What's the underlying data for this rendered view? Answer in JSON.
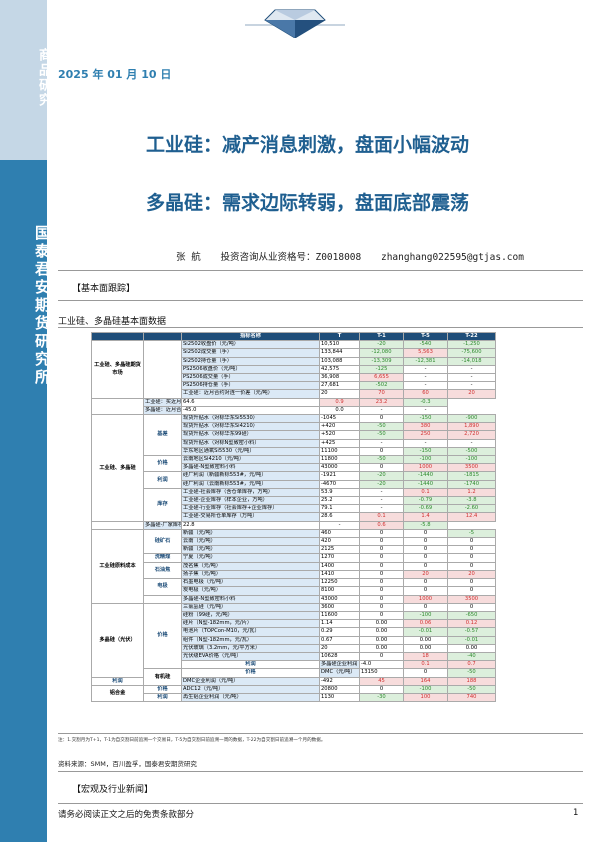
{
  "sidebar": {
    "top_text": "商品研究",
    "bottom_text": "国泰君安期货研究所"
  },
  "header": {
    "date": "2025 年 01 月 10 日"
  },
  "titles": {
    "main": "工业硅：减产消息刺激，盘面小幅波动",
    "sub": "多晶硅：需求边际转弱，盘面底部震荡"
  },
  "author": {
    "name": "张  航",
    "cert": "投资咨询从业资格号：Z0018008",
    "email": "zhanghang022595@gtjas.com"
  },
  "section1": "【基本面跟踪】",
  "table_title": "工业硅、多晶硅基本面数据",
  "table": {
    "headers": [
      "",
      "",
      "指标名称",
      "T",
      "T-1",
      "T-5",
      "T-22"
    ],
    "rows": [
      {
        "cat": "工业硅、多晶硅期货市场",
        "cat_rows": 7,
        "sub": "",
        "sub_rows": 7,
        "name": "Si2502收盘价（元/吨）",
        "v": "10,510",
        "d1": "-20",
        "c1": "g",
        "d5": "-540",
        "c5": "g",
        "d22": "-1,250",
        "c22": "g"
      },
      {
        "name": "Si2502成交量（手）",
        "v": "133,844",
        "d1": "-12,080",
        "c1": "g",
        "d5": "5,563",
        "c5": "r",
        "d22": "-75,600",
        "c22": "g"
      },
      {
        "name": "Si2502持仓量（手）",
        "v": "103,088",
        "d1": "-13,309",
        "c1": "g",
        "d5": "-12,381",
        "c5": "g",
        "d22": "-14,018",
        "c22": "g"
      },
      {
        "name": "PS2506收盘价（元/吨）",
        "v": "42,575",
        "d1": "-125",
        "c1": "g",
        "d5": "-",
        "c5": "",
        "d22": "-",
        "c22": ""
      },
      {
        "name": "PS2506成交量（手）",
        "v": "36,908",
        "d1": "6,655",
        "c1": "r",
        "d5": "-",
        "c5": "",
        "d22": "-",
        "c22": ""
      },
      {
        "name": "PS2506持仓量（手）",
        "v": "27,681",
        "d1": "-502",
        "c1": "g",
        "d5": "-",
        "c5": "",
        "d22": "-",
        "c22": ""
      },
      {
        "name": "工业硅：近月合约对连一价差（元/吨）",
        "v": "20",
        "d1": "70",
        "c1": "r",
        "d5": "60",
        "c5": "r",
        "d22": "20",
        "c22": "r"
      },
      {
        "cat": "",
        "cat_rows": 0,
        "sub": "",
        "sub_rows": 2,
        "name": "工业硅：买近月期货合约一跨期成本（元/吨）",
        "v": "64.6",
        "d1": "0.9",
        "c1": "r",
        "d5": "23.2",
        "c5": "r",
        "d22": "-0.3",
        "c22": "g"
      },
      {
        "name": "多晶硅：近月合约对连一价差（元/吨）",
        "v": "-45.0",
        "d1": "0.0",
        "c1": "",
        "d5": "-",
        "c5": "",
        "d22": "-",
        "c22": ""
      },
      {
        "cat": "工业硅、多晶硅",
        "cat_rows": 13,
        "sub": "基差",
        "sub_rows": 5,
        "name": "现货升贴水（对标华东Si5530）",
        "v": "-1045",
        "d1": "0",
        "c1": "",
        "d5": "-150",
        "c5": "g",
        "d22": "-900",
        "c22": "g"
      },
      {
        "name": "现货升贴水（对标华东Si4210）",
        "v": "+420",
        "d1": "-50",
        "c1": "g",
        "d5": "380",
        "c5": "r",
        "d22": "1,890",
        "c22": "r"
      },
      {
        "name": "现货升贴水（对标华东99硅）",
        "v": "+520",
        "d1": "-50",
        "c1": "g",
        "d5": "250",
        "c5": "r",
        "d22": "2,720",
        "c22": "r"
      },
      {
        "name": "现货升贴水（对标N型致密小料）",
        "v": "+425",
        "d1": "-",
        "c1": "",
        "d5": "-",
        "c5": "",
        "d22": "-",
        "c22": ""
      },
      {
        "name": "华东地区通氧Si5530（元/吨）",
        "v": "11100",
        "d1": "0",
        "c1": "",
        "d5": "-150",
        "c5": "g",
        "d22": "-500",
        "c22": "g"
      },
      {
        "sub": "价格",
        "sub_rows": 2,
        "name": "云南地区Si4210（元/吨）",
        "v": "11800",
        "d1": "-50",
        "c1": "g",
        "d5": "-100",
        "c5": "g",
        "d22": "-100",
        "c22": "g"
      },
      {
        "name": "多晶硅-N型致密料小料",
        "v": "43000",
        "d1": "0",
        "c1": "",
        "d5": "1000",
        "c5": "r",
        "d22": "3500",
        "c22": "r"
      },
      {
        "sub": "利润",
        "sub_rows": 2,
        "name": "硅厂利润（新疆新标553#，元/吨）",
        "v": "-1921",
        "d1": "-20",
        "c1": "g",
        "d5": "-1440",
        "c5": "g",
        "d22": "-1815",
        "c22": "g"
      },
      {
        "name": "硅厂利润（云南新标553#，元/吨）",
        "v": "-4670",
        "d1": "-20",
        "c1": "g",
        "d5": "-1440",
        "c5": "g",
        "d22": "-1740",
        "c22": "g"
      },
      {
        "sub": "库存",
        "sub_rows": 4,
        "name": "工业硅-社会库存（含仓单库存，万吨）",
        "v": "53.9",
        "d1": "-",
        "c1": "",
        "d5": "0.1",
        "c5": "r",
        "d22": "1.2",
        "c22": "r"
      },
      {
        "name": "工业硅-企业库存（样本企业，万吨）",
        "v": "25.2",
        "d1": "-",
        "c1": "",
        "d5": "-0.79",
        "c5": "g",
        "d22": "-3.8",
        "c22": "g"
      },
      {
        "name": "工业硅-行业库存（社会库存+企业库存）",
        "v": "79.1",
        "d1": "-",
        "c1": "",
        "d5": "-0.69",
        "c5": "g",
        "d22": "-2.60",
        "c22": "g"
      },
      {
        "name": "工业硅-交易所仓单库存（万吨）",
        "v": "28.6",
        "d1": "0.1",
        "c1": "r",
        "d5": "1.4",
        "c5": "r",
        "d22": "12.4",
        "c22": "r"
      },
      {
        "sub": "",
        "sub_rows": 1,
        "name": "多晶硅-厂家库存（万吨）",
        "v": "22.8",
        "d1": "-",
        "c1": "",
        "d5": "0.6",
        "c5": "r",
        "d22": "-5.8",
        "c22": "g"
      },
      {
        "cat": "工业硅原料成本",
        "cat_rows": 9,
        "sub": "硅矿石",
        "sub_rows": 3,
        "name": "新疆（元/吨）",
        "v": "460",
        "d1": "0",
        "c1": "",
        "d5": "0",
        "c5": "",
        "d22": "-5",
        "c22": "g"
      },
      {
        "name": "云南（元/吨）",
        "v": "420",
        "d1": "0",
        "c1": "",
        "d5": "0",
        "c5": "",
        "d22": "0",
        "c22": ""
      },
      {
        "name": "新疆（元/吨）",
        "v": "2125",
        "d1": "0",
        "c1": "",
        "d5": "0",
        "c5": "",
        "d22": "0",
        "c22": ""
      },
      {
        "sub": "洗精煤",
        "sub_rows": 1,
        "name": "宁夏（元/吨）",
        "v": "1270",
        "d1": "0",
        "c1": "",
        "d5": "0",
        "c5": "",
        "d22": "0",
        "c22": ""
      },
      {
        "sub": "石油焦",
        "sub_rows": 2,
        "name": "茂名焦（元/吨）",
        "v": "1400",
        "d1": "0",
        "c1": "",
        "d5": "0",
        "c5": "",
        "d22": "0",
        "c22": ""
      },
      {
        "name": "扬子焦（元/吨）",
        "v": "1410",
        "d1": "0",
        "c1": "",
        "d5": "20",
        "c5": "r",
        "d22": "20",
        "c22": "r"
      },
      {
        "sub": "电极",
        "sub_rows": 2,
        "name": "石墨电极（元/吨）",
        "v": "12250",
        "d1": "0",
        "c1": "",
        "d5": "0",
        "c5": "",
        "d22": "0",
        "c22": ""
      },
      {
        "name": "炭电极（元/吨）",
        "v": "8100",
        "d1": "0",
        "c1": "",
        "d5": "0",
        "c5": "",
        "d22": "0",
        "c22": ""
      },
      {
        "sub": "",
        "sub_rows": 1,
        "name": "多晶硅-N型致密料小料",
        "v": "43000",
        "d1": "0",
        "c1": "",
        "d5": "1000",
        "c5": "r",
        "d22": "3500",
        "c22": "r"
      },
      {
        "cat": "多晶硅（光伏）",
        "cat_rows": 9,
        "sub": "价格",
        "sub_rows": 8,
        "name": "三氯氢硅（元/吨）",
        "v": "3600",
        "d1": "0",
        "c1": "",
        "d5": "0",
        "c5": "",
        "d22": "0",
        "c22": ""
      },
      {
        "name": "硅粉（99硅，元/吨）",
        "v": "11600",
        "d1": "0",
        "c1": "",
        "d5": "-100",
        "c5": "g",
        "d22": "-650",
        "c22": "g"
      },
      {
        "name": "硅片（N型-182mm，元/片）",
        "v": "1.14",
        "d1": "0.00",
        "c1": "",
        "d5": "0.06",
        "c5": "r",
        "d22": "0.12",
        "c22": "r"
      },
      {
        "name": "电池片（TOPCon-M10，元/瓦）",
        "v": "0.29",
        "d1": "0.00",
        "c1": "",
        "d5": "-0.01",
        "c5": "g",
        "d22": "-0.57",
        "c22": "g"
      },
      {
        "name": "组件（N型-182mm，元/瓦）",
        "v": "0.67",
        "d1": "0.00",
        "c1": "",
        "d5": "0.00",
        "c5": "",
        "d22": "-0.01",
        "c22": "g"
      },
      {
        "name": "光伏玻璃（3.2mm，元/平方米）",
        "v": "20",
        "d1": "0.00",
        "c1": "",
        "d5": "0.00",
        "c5": "",
        "d22": "0.00",
        "c22": ""
      },
      {
        "name": "光伏级EVA价格（元/吨）",
        "v": "10628",
        "d1": "0",
        "c1": "",
        "d5": "18",
        "c5": "r",
        "d22": "-40",
        "c22": "g"
      },
      {
        "sub": "利润",
        "sub_rows": 1,
        "name": "多晶硅企业利润（元/千克）",
        "v": "-4.0",
        "d1": "0.1",
        "c1": "r",
        "d5": "0.7",
        "c5": "r",
        "d22": "3.4",
        "c22": "r"
      },
      {
        "cat": "有机硅",
        "cat_rows": 2,
        "sub": "价格",
        "sub_rows": 1,
        "name": "DMC（元/吨）",
        "v": "13150",
        "d1": "0",
        "c1": "",
        "d5": "-50",
        "c5": "g",
        "d22": "150",
        "c22": "r"
      },
      {
        "sub": "利润",
        "sub_rows": 1,
        "name": "DMC企业利润（元/吨）",
        "v": "-492",
        "d1": "45",
        "c1": "r",
        "d5": "164",
        "c5": "r",
        "d22": "188",
        "c22": "r"
      },
      {
        "cat": "铝合金",
        "cat_rows": 2,
        "sub": "价格",
        "sub_rows": 1,
        "name": "ADC12（元/吨）",
        "v": "20800",
        "d1": "0",
        "c1": "",
        "d5": "-100",
        "c5": "g",
        "d22": "-50",
        "c22": "g"
      },
      {
        "sub": "利润",
        "sub_rows": 1,
        "name": "再生铝企业利润（元/吨）",
        "v": "1130",
        "d1": "-30",
        "c1": "g",
        "d5": "100",
        "c5": "r",
        "d22": "740",
        "c22": "r"
      }
    ]
  },
  "note": "注：1.交割月为T+1，T-1为自交割日前追溯一个交易日，T-5为自交割日前追溯一周的数据，T-22为自交割日前追溯一个月的数据。",
  "source": "资料来源：SMM，百川盈孚，国泰君安期货研究",
  "section2": "【宏观及行业新闻】",
  "footer": "请务必阅读正文之后的免责条款部分",
  "page_number": "1",
  "colors": {
    "sidebar": "#2f7fb0",
    "title": "#1f5f90",
    "table_header": "#1f4e79",
    "up": "#d03030",
    "down": "#2f8a2f"
  }
}
